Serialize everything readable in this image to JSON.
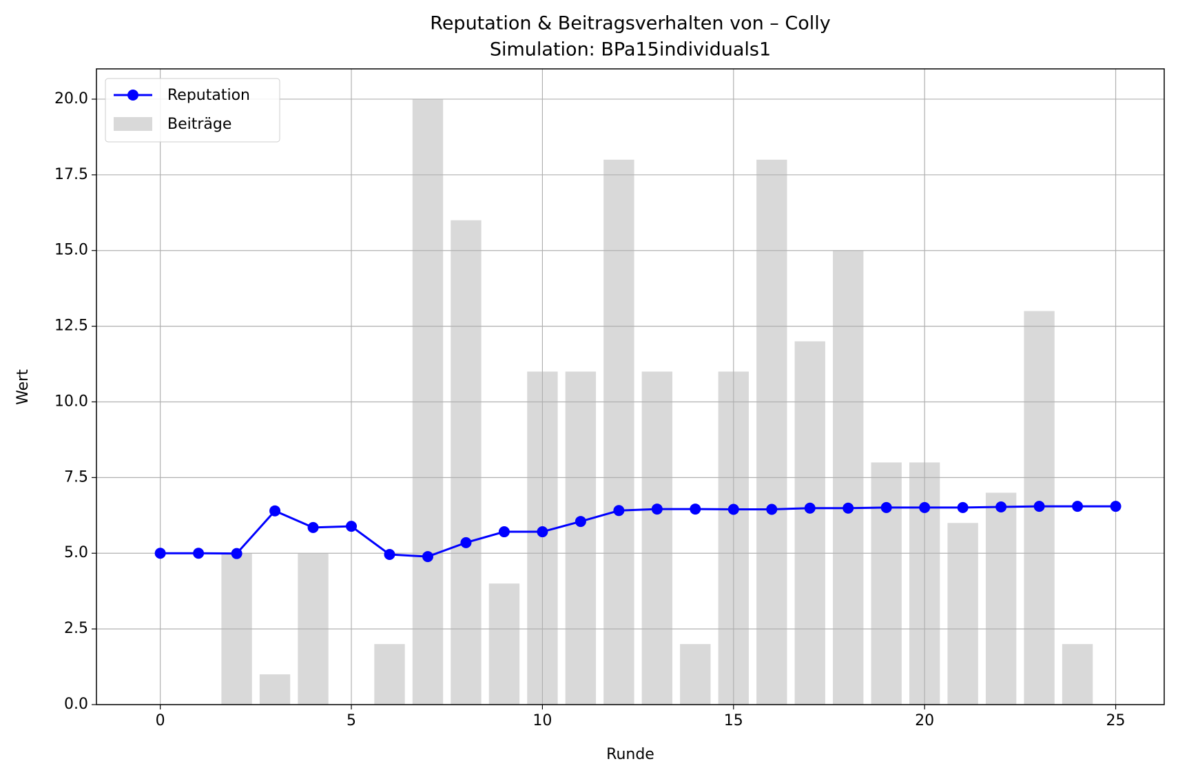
{
  "chart_data": {
    "type": "bar_line",
    "title": "Reputation & Beitragsverhalten von – Colly",
    "subtitle": "Simulation: BPa15individuals1",
    "x_label": "Runde",
    "y_label": "Wert",
    "xlim": [
      -1.67,
      26.27
    ],
    "ylim": [
      0,
      21
    ],
    "xticks": [
      0,
      5,
      10,
      15,
      20,
      25
    ],
    "yticks": [
      {
        "value": 0,
        "label": "0.0"
      },
      {
        "value": 2.5,
        "label": "2.5"
      },
      {
        "value": 5,
        "label": "5.0"
      },
      {
        "value": 7.5,
        "label": "7.5"
      },
      {
        "value": 10,
        "label": "10.0"
      },
      {
        "value": 12.5,
        "label": "12.5"
      },
      {
        "value": 15,
        "label": "15.0"
      },
      {
        "value": 17.5,
        "label": "17.5"
      },
      {
        "value": 20,
        "label": "20.0"
      }
    ],
    "grid": true,
    "legend": "upper left",
    "bars": {
      "name": "Beiträge",
      "color": "#d9d9d9",
      "width": 0.8,
      "x": [
        0,
        1,
        2,
        3,
        4,
        5,
        6,
        7,
        8,
        9,
        10,
        11,
        12,
        13,
        14,
        15,
        16,
        17,
        18,
        19,
        20,
        21,
        22,
        23,
        24
      ],
      "values": [
        0,
        0,
        5,
        1,
        5,
        0,
        2,
        20,
        16,
        4,
        11,
        11,
        18,
        11,
        2,
        11,
        18,
        12,
        15,
        8,
        8,
        6,
        7,
        13,
        2
      ]
    },
    "line": {
      "name": "Reputation",
      "color": "#0000ff",
      "x": [
        0,
        1,
        2,
        3,
        4,
        5,
        6,
        7,
        8,
        9,
        10,
        11,
        12,
        13,
        14,
        15,
        16,
        17,
        18,
        19,
        20,
        21,
        22,
        23,
        24,
        25
      ],
      "values": [
        5.0,
        5.0,
        4.99,
        6.4,
        5.85,
        5.89,
        4.96,
        4.89,
        5.35,
        5.71,
        5.71,
        6.05,
        6.41,
        6.46,
        6.46,
        6.45,
        6.45,
        6.49,
        6.49,
        6.51,
        6.51,
        6.51,
        6.53,
        6.55,
        6.55,
        6.55
      ]
    }
  }
}
